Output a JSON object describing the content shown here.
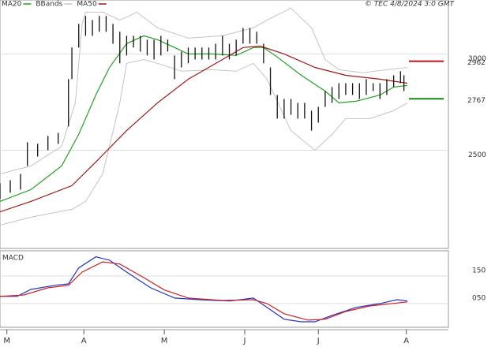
{
  "chart_data": {
    "type": "stock",
    "source": "© TEC 4/8/2024 3:0 GMT",
    "xlim": [
      0,
      131
    ],
    "xticks": [
      {
        "value": 2,
        "label": "M"
      },
      {
        "value": 24.5,
        "label": "A"
      },
      {
        "value": 48,
        "label": "M"
      },
      {
        "value": 71.5,
        "label": "J"
      },
      {
        "value": 93,
        "label": "J"
      },
      {
        "value": 118.7,
        "label": "A"
      }
    ],
    "ylim": [
      1990,
      3280
    ],
    "yticks": [
      2500,
      3000
    ],
    "grid": true,
    "price": {
      "color": "#111111",
      "x": [
        0,
        3,
        6,
        8,
        11,
        14,
        17,
        20,
        21,
        23,
        25,
        27,
        29,
        31,
        33,
        35,
        37,
        39,
        41,
        43,
        45,
        47,
        49,
        51,
        53,
        55,
        57,
        59,
        61,
        63,
        65,
        67,
        69,
        71,
        73,
        75,
        77,
        79,
        81,
        83,
        85,
        87,
        89,
        91,
        93,
        95,
        97,
        99,
        101,
        103,
        105,
        107,
        109,
        111,
        113,
        115,
        117,
        118
      ],
      "high": [
        2328,
        2344,
        2377,
        2541,
        2533,
        2574,
        2590,
        2869,
        3033,
        3156,
        3197,
        3176,
        3197,
        3197,
        3156,
        3115,
        3094,
        3094,
        3094,
        3074,
        3074,
        3094,
        3074,
        2992,
        3012,
        3033,
        3033,
        3033,
        3033,
        3053,
        3094,
        3053,
        3074,
        3135,
        3135,
        3115,
        3053,
        2930,
        2787,
        2766,
        2766,
        2746,
        2746,
        2705,
        2725,
        2807,
        2828,
        2848,
        2848,
        2848,
        2848,
        2869,
        2848,
        2848,
        2869,
        2889,
        2910,
        2889
      ],
      "low": [
        2246,
        2279,
        2295,
        2418,
        2467,
        2500,
        2533,
        2623,
        2869,
        3033,
        3094,
        3094,
        3115,
        3115,
        3053,
        2951,
        2992,
        3033,
        3012,
        2992,
        2971,
        2992,
        3012,
        2869,
        2930,
        2951,
        2971,
        2971,
        2971,
        2971,
        2992,
        2971,
        2992,
        3053,
        3053,
        3053,
        2951,
        2787,
        2664,
        2664,
        2684,
        2664,
        2664,
        2602,
        2643,
        2725,
        2746,
        2766,
        2787,
        2787,
        2766,
        2787,
        2807,
        2766,
        2787,
        2828,
        2848,
        2807
      ]
    },
    "series": [
      {
        "name": "MA20",
        "color": "#22a022",
        "x": [
          0,
          9,
          18,
          23,
          28,
          32,
          37,
          42,
          46,
          51,
          55,
          62,
          69,
          74,
          77,
          81,
          88,
          95,
          99,
          104,
          111,
          115,
          119
        ],
        "values": [
          2234,
          2295,
          2418,
          2582,
          2787,
          2930,
          3053,
          3094,
          3074,
          3033,
          3000,
          3000,
          2992,
          3033,
          3033,
          2984,
          2889,
          2807,
          2746,
          2754,
          2787,
          2828,
          2836
        ]
      },
      {
        "name": "BBands",
        "color": "#c4c4c4",
        "bands": [
          {
            "x": [
              0,
              9,
              18,
              22,
              24,
              25,
              30,
              35,
              40,
              46,
              55,
              65,
              74,
              78,
              85,
              91,
              95,
              99,
              106,
              113,
              119
            ],
            "values": [
              2377,
              2418,
              2520,
              2746,
              3156,
              3217,
              3217,
              3176,
              3217,
              3135,
              3082,
              3094,
              3135,
              3176,
              3238,
              3135,
              2971,
              2918,
              2902,
              2918,
              2930
            ]
          },
          {
            "x": [
              0,
              9,
              21,
              25,
              30,
              35,
              37,
              42,
              46,
              53,
              62,
              69,
              74,
              78,
              85,
              92,
              97,
              101,
              108,
              115,
              119
            ],
            "values": [
              2111,
              2152,
              2193,
              2234,
              2377,
              2746,
              2951,
              2971,
              2951,
              2910,
              2918,
              2910,
              2951,
              2869,
              2602,
              2500,
              2582,
              2664,
              2664,
              2705,
              2746
            ]
          }
        ]
      },
      {
        "name": "MA50",
        "color": "#a01818",
        "x": [
          0,
          9,
          21,
          28,
          37,
          46,
          55,
          65,
          71,
          76,
          83,
          92,
          101,
          111,
          119
        ],
        "values": [
          2180,
          2234,
          2316,
          2439,
          2602,
          2746,
          2869,
          2971,
          3033,
          3041,
          3000,
          2930,
          2889,
          2869,
          2848
        ]
      }
    ],
    "last_values": [
      {
        "value": 2962,
        "color": "#c01010"
      },
      {
        "value": 2767,
        "color": "#108a10"
      }
    ],
    "macd": {
      "title": "MACD",
      "ylim": [
        -36,
        241
      ],
      "yticks": [
        {
          "value": 50,
          "label": "050"
        },
        150
      ],
      "series": [
        {
          "color": "#2233cc",
          "x": [
            0,
            5,
            9,
            16,
            20,
            23,
            28,
            32,
            37,
            44,
            51,
            58,
            67,
            74,
            78,
            83,
            88,
            92,
            97,
            104,
            111,
            116,
            119
          ],
          "values": [
            76,
            76,
            101,
            116,
            121,
            179,
            219,
            207,
            164,
            107,
            70,
            64,
            59,
            70,
            36,
            -7,
            -16,
            -16,
            7,
            36,
            50,
            64,
            59
          ]
        },
        {
          "color": "#cc2222",
          "x": [
            0,
            7,
            14,
            20,
            24,
            30,
            35,
            42,
            48,
            55,
            65,
            74,
            78,
            83,
            90,
            95,
            101,
            108,
            119
          ],
          "values": [
            76,
            81,
            107,
            116,
            164,
            201,
            193,
            144,
            99,
            70,
            61,
            64,
            50,
            13,
            -10,
            -7,
            21,
            41,
            56
          ]
        }
      ]
    }
  }
}
